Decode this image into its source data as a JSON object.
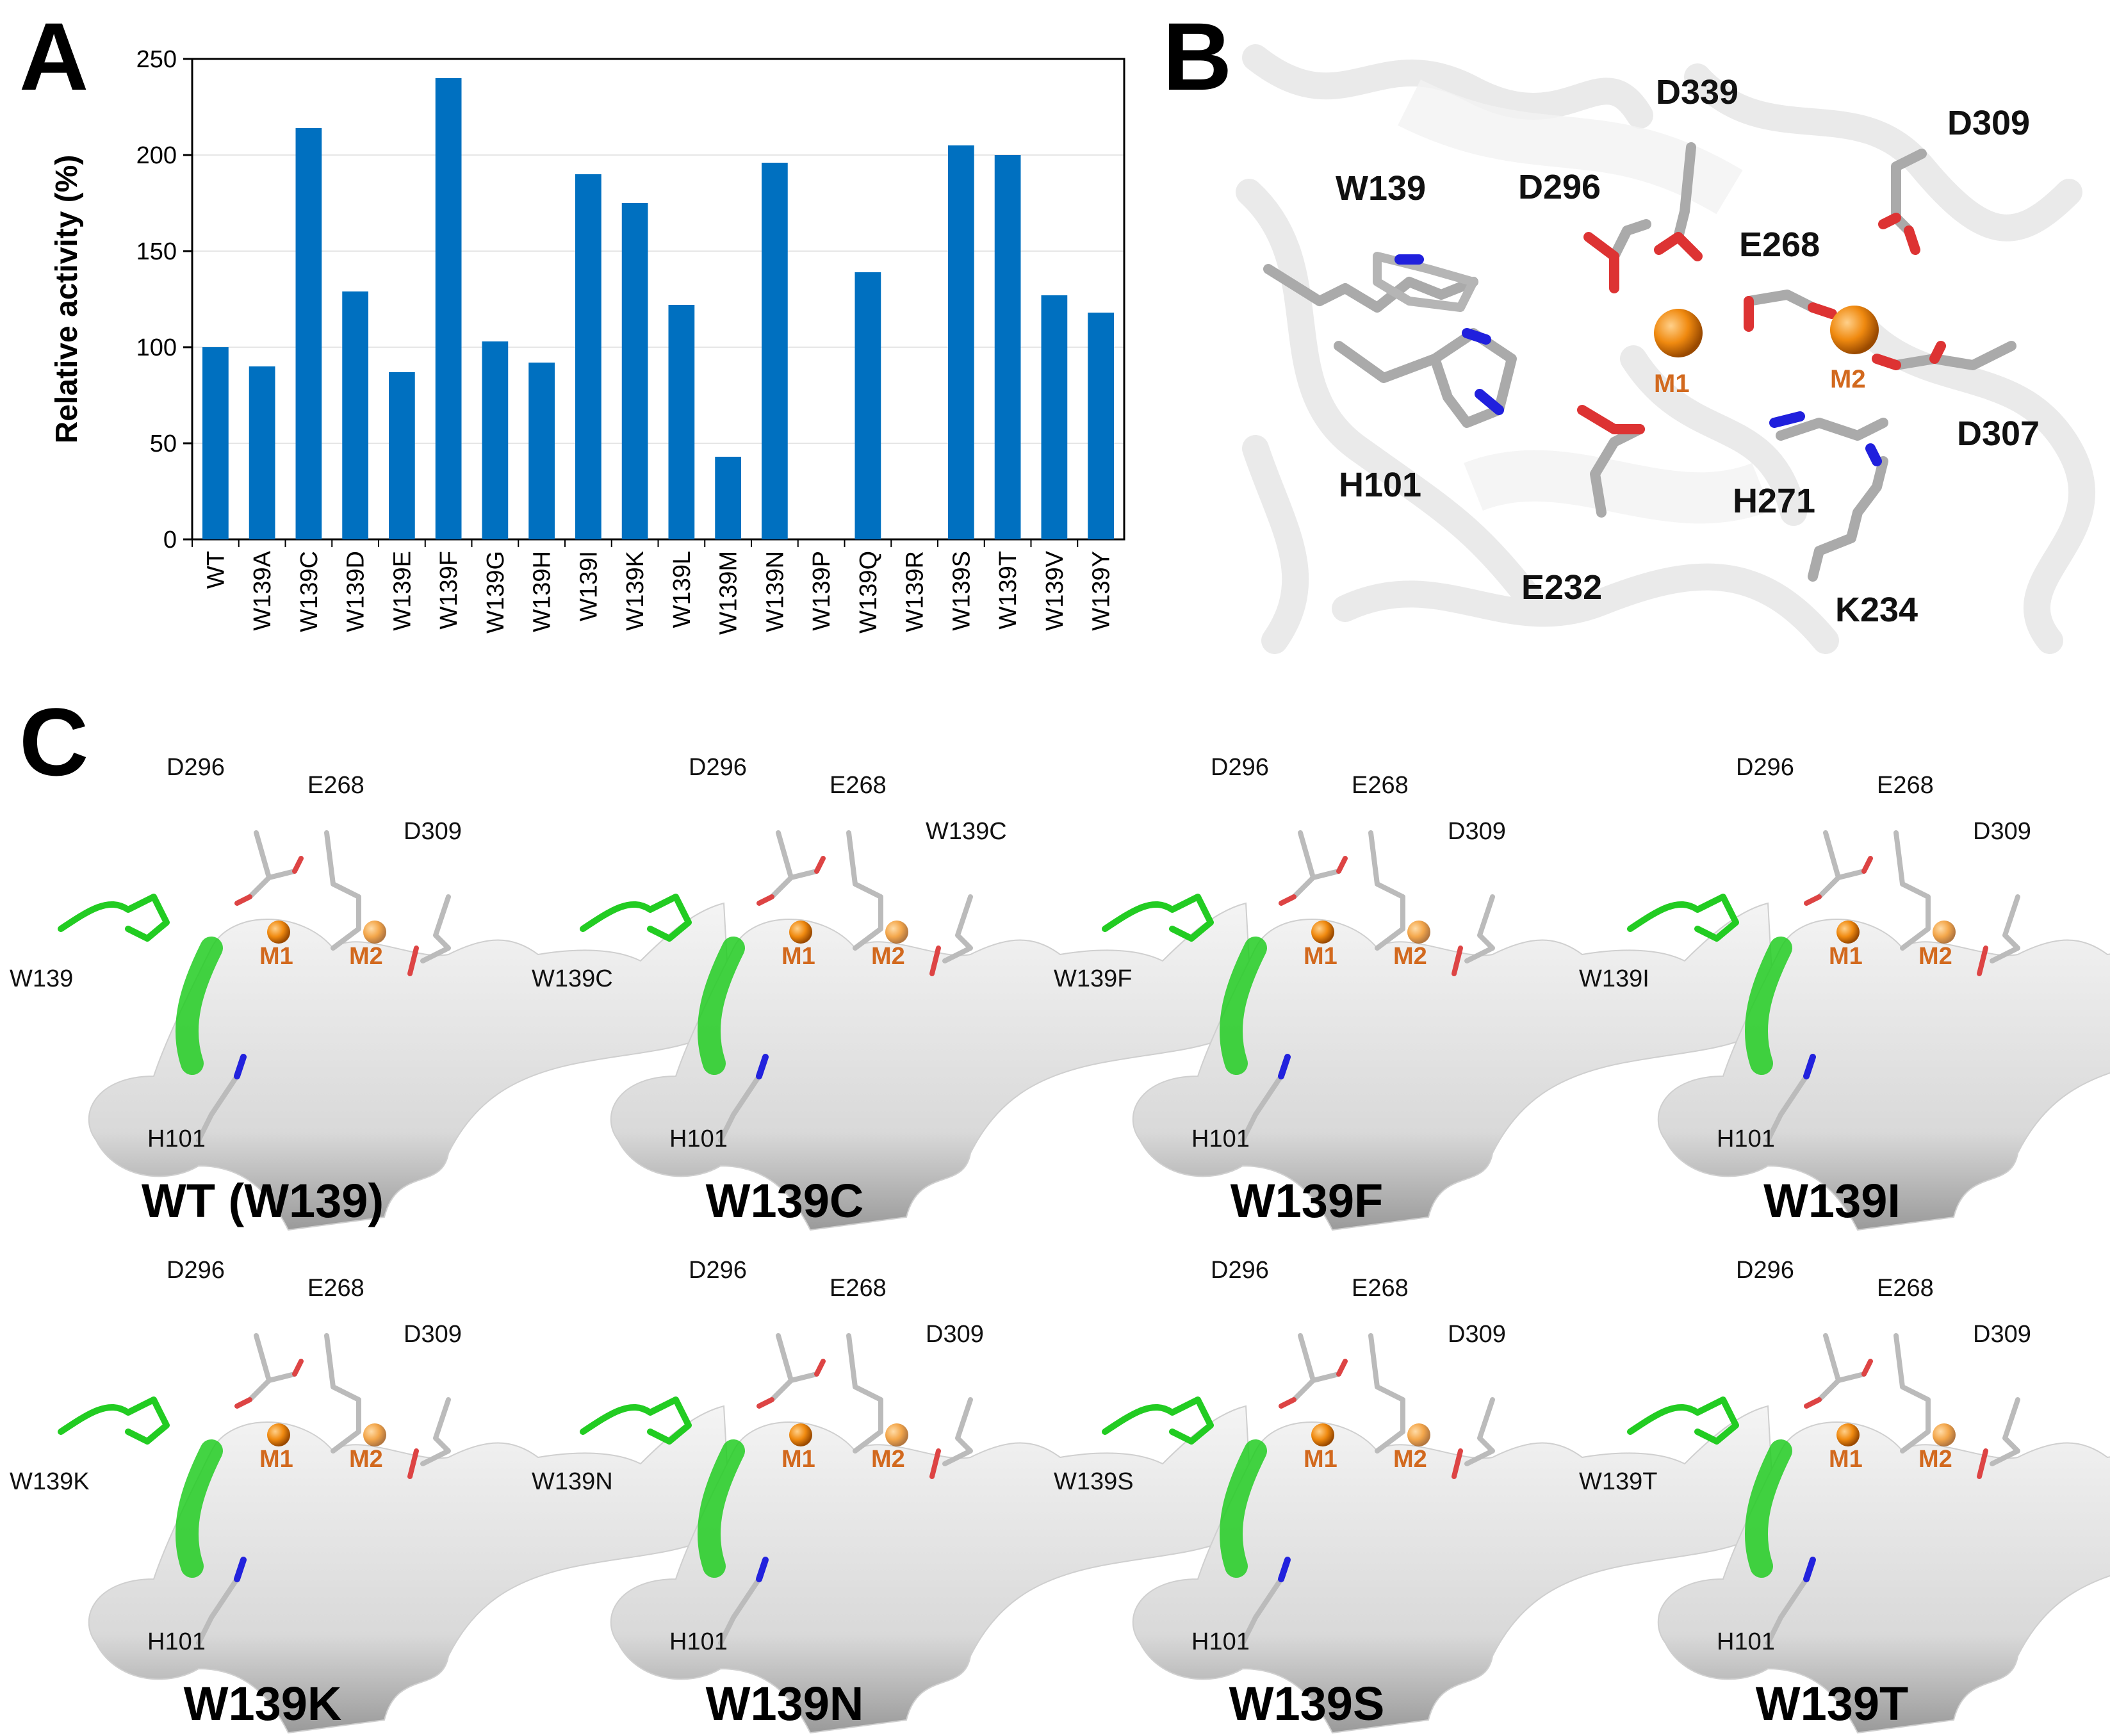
{
  "panels": {
    "a": "A",
    "b": "B",
    "c": "C"
  },
  "chart_data": {
    "type": "bar",
    "ylabel": "Relative activity (%)",
    "xlabel": "",
    "ylim": [
      0,
      250
    ],
    "yticks": [
      "0",
      "50",
      "100",
      "150",
      "200",
      "250"
    ],
    "grid": true,
    "bar_color": "#0070C0",
    "categories": [
      "WT",
      "W139A",
      "W139C",
      "W139D",
      "W139E",
      "W139F",
      "W139G",
      "W139H",
      "W139I",
      "W139K",
      "W139L",
      "W139M",
      "W139N",
      "W139P",
      "W139Q",
      "W139R",
      "W139S",
      "W139T",
      "W139V",
      "W139Y"
    ],
    "values": [
      100,
      90,
      214,
      129,
      87,
      240,
      103,
      92,
      190,
      175,
      122,
      43,
      196,
      0,
      139,
      0,
      205,
      200,
      127,
      118
    ]
  },
  "panel_b": {
    "residues": [
      "D339",
      "D309",
      "W139",
      "D296",
      "E268",
      "M1",
      "M2",
      "D307",
      "H101",
      "H271",
      "E232",
      "K234"
    ],
    "metal_color": "#E07B12"
  },
  "panel_c": {
    "residue_labels": {
      "d296": "D296",
      "e268": "E268",
      "d309": "D309",
      "h101": "H101",
      "m1": "M1",
      "m2": "M2"
    },
    "mutants": [
      {
        "title": "WT (W139)",
        "site_label": "W139",
        "show_d309": true
      },
      {
        "title": "W139C",
        "site_label": "W139C",
        "show_d309": false,
        "corner_label": "W139C"
      },
      {
        "title": "W139F",
        "site_label": "W139F",
        "show_d309": true
      },
      {
        "title": "W139I",
        "site_label": "W139I",
        "show_d309": true
      },
      {
        "title": "W139K",
        "site_label": "W139K",
        "show_d309": true
      },
      {
        "title": "W139N",
        "site_label": "W139N",
        "show_d309": true
      },
      {
        "title": "W139S",
        "site_label": "W139S",
        "show_d309": true
      },
      {
        "title": "W139T",
        "site_label": "W139T",
        "show_d309": true
      }
    ],
    "mutation_color": "#22CC22"
  }
}
